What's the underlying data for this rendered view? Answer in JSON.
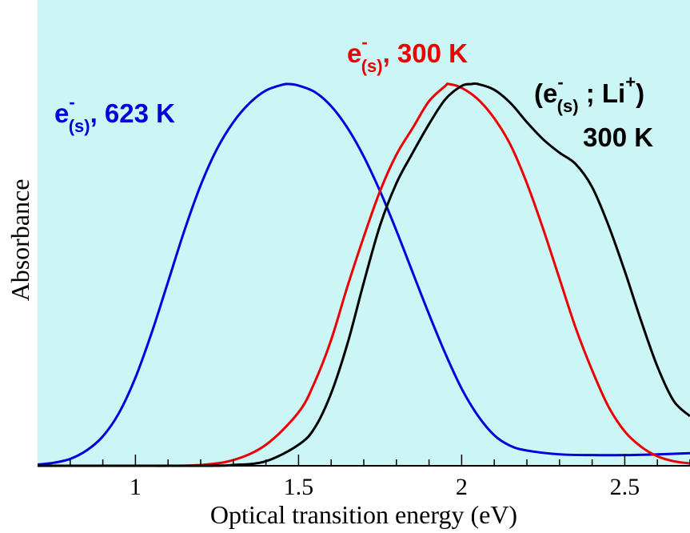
{
  "chart_data": {
    "type": "line",
    "xlabel": "Optical transition energy (eV)",
    "ylabel": "Absorbance",
    "xlim": [
      0.7,
      2.7
    ],
    "ylim": [
      0,
      1.0
    ],
    "x_ticks": [
      1,
      1.5,
      2,
      2.5
    ],
    "x_tick_labels": [
      "1",
      "1.5",
      "2",
      "2.5"
    ],
    "y_ticks_shown": false,
    "grid": false,
    "background_color": "#ccf5f5",
    "series": [
      {
        "color": "#0000dd",
        "points": [
          [
            0.7,
            0.003
          ],
          [
            0.75,
            0.008
          ],
          [
            0.8,
            0.018
          ],
          [
            0.85,
            0.04
          ],
          [
            0.9,
            0.077
          ],
          [
            0.95,
            0.139
          ],
          [
            1.0,
            0.231
          ],
          [
            1.05,
            0.349
          ],
          [
            1.1,
            0.482
          ],
          [
            1.15,
            0.616
          ],
          [
            1.2,
            0.735
          ],
          [
            1.25,
            0.83
          ],
          [
            1.3,
            0.9
          ],
          [
            1.35,
            0.95
          ],
          [
            1.4,
            0.983
          ],
          [
            1.45,
            0.998
          ],
          [
            1.47,
            1.0
          ],
          [
            1.5,
            0.996
          ],
          [
            1.55,
            0.979
          ],
          [
            1.6,
            0.942
          ],
          [
            1.65,
            0.885
          ],
          [
            1.7,
            0.81
          ],
          [
            1.75,
            0.719
          ],
          [
            1.8,
            0.616
          ],
          [
            1.85,
            0.506
          ],
          [
            1.9,
            0.397
          ],
          [
            1.95,
            0.294
          ],
          [
            2.0,
            0.202
          ],
          [
            2.05,
            0.131
          ],
          [
            2.1,
            0.08
          ],
          [
            2.15,
            0.052
          ],
          [
            2.2,
            0.04
          ],
          [
            2.3,
            0.03
          ],
          [
            2.4,
            0.028
          ],
          [
            2.5,
            0.028
          ],
          [
            2.6,
            0.03
          ],
          [
            2.7,
            0.033
          ]
        ]
      },
      {
        "color": "#ee0000",
        "points": [
          [
            0.7,
            0.0
          ],
          [
            1.0,
            0.0
          ],
          [
            1.1,
            0.0
          ],
          [
            1.2,
            0.002
          ],
          [
            1.3,
            0.015
          ],
          [
            1.4,
            0.055
          ],
          [
            1.5,
            0.14
          ],
          [
            1.55,
            0.22
          ],
          [
            1.6,
            0.33
          ],
          [
            1.65,
            0.47
          ],
          [
            1.7,
            0.6
          ],
          [
            1.75,
            0.72
          ],
          [
            1.8,
            0.815
          ],
          [
            1.85,
            0.885
          ],
          [
            1.9,
            0.955
          ],
          [
            1.95,
            0.995
          ],
          [
            1.96,
            1.0
          ],
          [
            2.0,
            0.99
          ],
          [
            2.05,
            0.96
          ],
          [
            2.1,
            0.91
          ],
          [
            2.15,
            0.84
          ],
          [
            2.2,
            0.74
          ],
          [
            2.25,
            0.62
          ],
          [
            2.3,
            0.49
          ],
          [
            2.35,
            0.36
          ],
          [
            2.4,
            0.25
          ],
          [
            2.45,
            0.155
          ],
          [
            2.5,
            0.09
          ],
          [
            2.55,
            0.05
          ],
          [
            2.6,
            0.025
          ],
          [
            2.65,
            0.012
          ],
          [
            2.7,
            0.006
          ]
        ]
      },
      {
        "color": "#000000",
        "points": [
          [
            0.7,
            0.0
          ],
          [
            1.2,
            0.0
          ],
          [
            1.3,
            0.002
          ],
          [
            1.4,
            0.012
          ],
          [
            1.5,
            0.055
          ],
          [
            1.55,
            0.1
          ],
          [
            1.6,
            0.19
          ],
          [
            1.65,
            0.32
          ],
          [
            1.7,
            0.48
          ],
          [
            1.75,
            0.63
          ],
          [
            1.8,
            0.74
          ],
          [
            1.85,
            0.82
          ],
          [
            1.9,
            0.895
          ],
          [
            1.95,
            0.96
          ],
          [
            2.0,
            0.995
          ],
          [
            2.03,
            1.0
          ],
          [
            2.05,
            1.0
          ],
          [
            2.1,
            0.985
          ],
          [
            2.15,
            0.95
          ],
          [
            2.2,
            0.9
          ],
          [
            2.25,
            0.855
          ],
          [
            2.3,
            0.82
          ],
          [
            2.35,
            0.79
          ],
          [
            2.4,
            0.73
          ],
          [
            2.45,
            0.63
          ],
          [
            2.5,
            0.51
          ],
          [
            2.55,
            0.38
          ],
          [
            2.6,
            0.26
          ],
          [
            2.65,
            0.17
          ],
          [
            2.7,
            0.13
          ]
        ]
      }
    ],
    "annotations": {
      "blue": {
        "main": "e",
        "sup": "-",
        "sub": "(s)",
        "tail": ", 623 K",
        "color": "#0000dd"
      },
      "red": {
        "main": "e",
        "sup": "-",
        "sub": "(s)",
        "tail": ", 300 K",
        "color": "#ee0000"
      },
      "black": {
        "open": "(e",
        "sup1": "-",
        "sub": "(s)",
        "mid": " ; Li",
        "sup2": "+",
        "close": ")",
        "line2": "300 K",
        "color": "#000000"
      }
    }
  }
}
